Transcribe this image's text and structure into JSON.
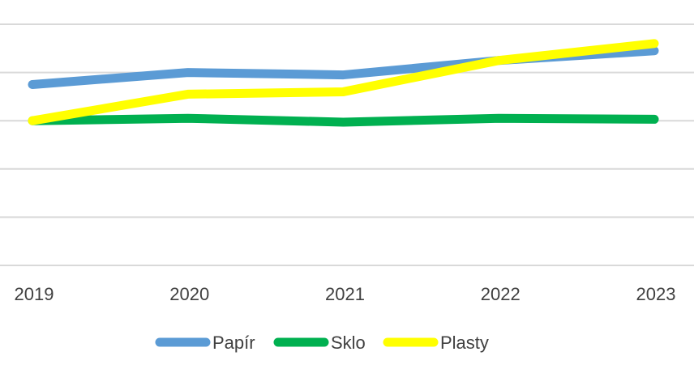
{
  "chart_data": {
    "type": "line",
    "categories": [
      "2019",
      "2020",
      "2021",
      "2022",
      "2023"
    ],
    "ylim": [
      0,
      5
    ],
    "grid": true,
    "legend_position": "bottom",
    "series": [
      {
        "name": "Papír",
        "color": "#5b9bd5",
        "values": [
          3.75,
          4.0,
          3.95,
          4.25,
          4.45
        ]
      },
      {
        "name": "Sklo",
        "color": "#00b050",
        "values": [
          3.0,
          3.05,
          2.97,
          3.05,
          3.03
        ]
      },
      {
        "name": "Plasty",
        "color": "#ffff00",
        "values": [
          3.0,
          3.55,
          3.6,
          4.25,
          4.6
        ]
      }
    ]
  }
}
